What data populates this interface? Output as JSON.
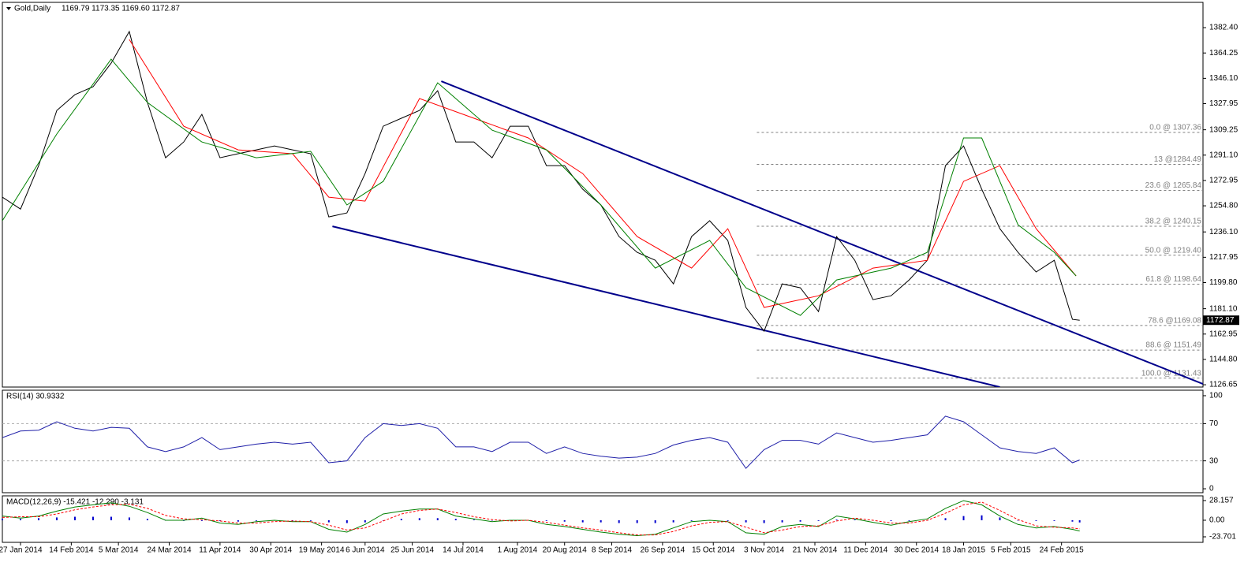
{
  "chart_data": {
    "type": "line",
    "title": "Gold,Daily",
    "subtitle": "1169.79 1173.35 1169.60 1172.87",
    "last": 1172.87,
    "xlim": [
      0,
      331
    ],
    "xticks": [
      {
        "value": 5,
        "label": "27 Jan 2014"
      },
      {
        "value": 19,
        "label": "14 Feb 2014"
      },
      {
        "value": 32,
        "label": "5 Mar 2014"
      },
      {
        "value": 46,
        "label": "24 Mar 2014"
      },
      {
        "value": 60,
        "label": "11 Apr 2014"
      },
      {
        "value": 74,
        "label": "30 Apr 2014"
      },
      {
        "value": 88,
        "label": "19 May 2014"
      },
      {
        "value": 100,
        "label": "6 Jun 2014"
      },
      {
        "value": 113,
        "label": "25 Jun 2014"
      },
      {
        "value": 127,
        "label": "14 Jul 2014"
      },
      {
        "value": 142,
        "label": "1 Aug 2014"
      },
      {
        "value": 155,
        "label": "20 Aug 2014"
      },
      {
        "value": 168,
        "label": "8 Sep 2014"
      },
      {
        "value": 182,
        "label": "26 Sep 2014"
      },
      {
        "value": 196,
        "label": "15 Oct 2014"
      },
      {
        "value": 210,
        "label": "3 Nov 2014"
      },
      {
        "value": 224,
        "label": "21 Nov 2014"
      },
      {
        "value": 238,
        "label": "11 Dec 2014"
      },
      {
        "value": 252,
        "label": "30 Dec 2014"
      },
      {
        "value": 265,
        "label": "18 Jan 2015"
      },
      {
        "value": 278,
        "label": "5 Feb 2015"
      },
      {
        "value": 292,
        "label": "24 Feb 2015"
      }
    ],
    "ylim": [
      1125,
      1400.5
    ],
    "yticks": [
      {
        "value": 1382.4,
        "label": "1382.40"
      },
      1364.25,
      {
        "value": 1346.1,
        "label": "1346.10"
      },
      1327.95,
      1309.25,
      {
        "value": 1291.1,
        "label": "1291.10"
      },
      1272.95,
      {
        "value": 1254.8,
        "label": "1254.80"
      },
      {
        "value": 1236.1,
        "label": "1236.10"
      },
      1217.95,
      {
        "value": 1199.8,
        "label": "1199.80"
      },
      {
        "value": 1181.1,
        "label": "1181.10"
      },
      1162.95,
      {
        "value": 1144.8,
        "label": "1144.80"
      },
      1126.65
    ],
    "series": [
      {
        "color": "#000000",
        "x": [
          0,
          5,
          10,
          15,
          20,
          25,
          30,
          35,
          40,
          45,
          50,
          55,
          60,
          65,
          70,
          75,
          80,
          85,
          90,
          95,
          100,
          105,
          110,
          115,
          120,
          125,
          130,
          135,
          140,
          145,
          150,
          155,
          160,
          165,
          170,
          175,
          180,
          185,
          190,
          195,
          200,
          205,
          210,
          215,
          220,
          225,
          230,
          235,
          240,
          245,
          250,
          255,
          260,
          265,
          270,
          275,
          280,
          285,
          290,
          295,
          297
        ],
        "values": [
          1261.0,
          1252.5,
          1283.6,
          1323.1,
          1334.4,
          1340.1,
          1357.0,
          1379.6,
          1328.8,
          1289.2,
          1300.5,
          1320.3,
          1289.2,
          1292.1,
          1294.9,
          1297.7,
          1294.9,
          1292.1,
          1246.9,
          1249.7,
          1277.9,
          1311.8,
          1317.5,
          1323.1,
          1337.2,
          1300.5,
          1300.5,
          1289.2,
          1311.8,
          1311.8,
          1283.6,
          1283.6,
          1266.7,
          1255.4,
          1232.8,
          1221.5,
          1215.8,
          1198.9,
          1232.8,
          1244.1,
          1230.0,
          1182.0,
          1165.0,
          1198.9,
          1196.1,
          1179.1,
          1232.8,
          1215.8,
          1187.6,
          1190.4,
          1201.7,
          1215.8,
          1283.6,
          1297.7,
          1266.7,
          1238.4,
          1221.5,
          1207.4,
          1215.8,
          1173.5,
          1172.87
        ]
      },
      {
        "color": "#ff0000",
        "x": [
          35,
          50,
          65,
          80,
          90,
          100,
          115,
          130,
          145,
          160,
          175,
          190,
          200,
          210,
          225,
          240,
          255,
          265,
          275,
          285,
          296
        ],
        "values": [
          1373.9,
          1311.8,
          1294.9,
          1292.1,
          1261.0,
          1258.2,
          1331.6,
          1317.5,
          1303.4,
          1277.9,
          1232.8,
          1210.2,
          1238.4,
          1182.0,
          1190.4,
          1210.2,
          1215.8,
          1272.3,
          1283.6,
          1238.4,
          1204.6
        ]
      },
      {
        "color": "#008000",
        "x": [
          0,
          15,
          30,
          40,
          55,
          70,
          85,
          95,
          105,
          120,
          135,
          150,
          165,
          180,
          195,
          205,
          220,
          230,
          245,
          255,
          265,
          270,
          280,
          290,
          296
        ],
        "values": [
          1244.1,
          1306.2,
          1359.8,
          1328.8,
          1300.5,
          1289.2,
          1293.8,
          1255.4,
          1272.3,
          1342.9,
          1309.0,
          1294.9,
          1255.4,
          1210.2,
          1230.0,
          1196.1,
          1176.3,
          1201.7,
          1210.2,
          1221.5,
          1303.4,
          1303.4,
          1241.2,
          1221.5,
          1204.6
        ]
      }
    ],
    "trendlines": [
      {
        "color": "#00008b",
        "x": [
          121,
          331
        ],
        "values": [
          1344.0,
          1127.2
        ]
      },
      {
        "color": "#00008b",
        "x": [
          91,
          275
        ],
        "values": [
          1240.1,
          1125.0
        ]
      }
    ],
    "fib_start": 208,
    "fib_levels": [
      {
        "value": 1307.36,
        "label": "0.0 @ 1307.36"
      },
      {
        "value": 1284.49,
        "label": "13 @1284.49"
      },
      {
        "value": 1265.84,
        "label": "23.6 @ 1265.84"
      },
      {
        "value": 1240.15,
        "label": "38.2 @ 1240.15"
      },
      {
        "value": 1219.4,
        "label": "50.0 @ 1219.40"
      },
      {
        "value": 1198.64,
        "label": "61.8 @ 1198.64"
      },
      {
        "value": 1169.08,
        "label": "78.6 @1169.08"
      },
      {
        "value": 1151.49,
        "label": "88.6 @ 1151.49"
      },
      {
        "value": 1131.43,
        "label": "100.0 @ 1131.43"
      }
    ],
    "rsi": {
      "type": "line",
      "title": "RSI(14) 30.9332",
      "ylim": [
        -4.2,
        105.9
      ],
      "yticks": [
        100,
        70,
        30,
        0
      ],
      "levels": [
        70,
        30
      ],
      "color": "#1f1fa8",
      "x": [
        0,
        5,
        10,
        15,
        20,
        25,
        30,
        35,
        40,
        45,
        50,
        55,
        60,
        65,
        70,
        75,
        80,
        85,
        90,
        95,
        100,
        105,
        110,
        115,
        120,
        125,
        130,
        135,
        140,
        145,
        150,
        155,
        160,
        165,
        170,
        175,
        180,
        185,
        190,
        195,
        200,
        205,
        210,
        215,
        220,
        225,
        230,
        235,
        240,
        245,
        250,
        255,
        260,
        265,
        270,
        275,
        280,
        285,
        290,
        295,
        297
      ],
      "values": [
        55,
        62,
        63,
        72,
        65,
        62,
        66,
        65,
        45,
        40,
        45,
        55,
        42,
        45,
        48,
        50,
        48,
        50,
        28,
        30,
        55,
        70,
        68,
        70,
        65,
        45,
        45,
        40,
        50,
        50,
        38,
        45,
        38,
        35,
        33,
        34,
        38,
        47,
        52,
        55,
        50,
        22,
        42,
        52,
        52,
        48,
        60,
        55,
        50,
        52,
        55,
        58,
        78,
        72,
        58,
        44,
        40,
        38,
        44,
        28,
        30.93
      ]
    },
    "macd": {
      "type": "macd",
      "title": "MACD(12,26,9) -15.421 -12.290 -3.131",
      "ylim": [
        -31.6,
        34.9
      ],
      "yticks": [
        28.157,
        {
          "value": 0,
          "label": "0.00"
        },
        -23.701
      ],
      "x": [
        0,
        5,
        10,
        15,
        20,
        25,
        30,
        35,
        40,
        45,
        50,
        55,
        60,
        65,
        70,
        75,
        80,
        85,
        90,
        95,
        100,
        105,
        110,
        115,
        120,
        125,
        130,
        135,
        140,
        145,
        150,
        155,
        160,
        165,
        170,
        175,
        180,
        185,
        190,
        195,
        200,
        205,
        210,
        215,
        220,
        225,
        230,
        235,
        240,
        245,
        250,
        255,
        260,
        265,
        270,
        275,
        280,
        285,
        290,
        295,
        297
      ],
      "histogram": {
        "color": "#0000cd",
        "values": [
          2,
          2,
          3,
          4,
          5,
          5,
          5,
          4,
          2,
          0,
          -1,
          -1,
          -1,
          -2,
          -1,
          0,
          -1,
          -1,
          -3,
          -4,
          -3,
          0,
          2,
          3,
          3,
          2,
          1,
          0,
          0,
          0,
          -1,
          -2,
          -3,
          -3,
          -4,
          -4,
          -4,
          -3,
          -1,
          0,
          -1,
          -3,
          -4,
          -3,
          -2,
          -1,
          1,
          1,
          0,
          -1,
          -1,
          0,
          3,
          6,
          7,
          4,
          0,
          -1,
          -1,
          -2,
          -3.131
        ]
      },
      "lines": [
        {
          "color": "#008000",
          "style": "solid",
          "values": [
            6,
            3,
            6,
            13,
            19,
            22,
            25,
            20,
            11,
            0,
            0,
            3,
            -4,
            -6,
            -2,
            0,
            -2,
            -2,
            -13,
            -17,
            -6,
            9,
            13,
            16,
            16,
            6,
            2,
            -2,
            0,
            0,
            -6,
            -9,
            -13,
            -17,
            -20,
            -22,
            -20,
            -11,
            -2,
            0,
            -2,
            -18,
            -20,
            -9,
            -6,
            -9,
            6,
            2,
            -3,
            -7,
            -2,
            2,
            17,
            28,
            22,
            6,
            -6,
            -11,
            -9,
            -13,
            -15.421
          ]
        },
        {
          "color": "#ff0000",
          "style": "dashed",
          "values": [
            4,
            5,
            5,
            9,
            15,
            19,
            22,
            23,
            17,
            7,
            2,
            1,
            -1,
            -4,
            -4,
            -2,
            -1,
            -2,
            -7,
            -14,
            -11,
            -1,
            9,
            14,
            16,
            11,
            5,
            1,
            -1,
            0,
            -3,
            -7,
            -11,
            -14,
            -18,
            -21,
            -21,
            -16,
            -8,
            -3,
            -2,
            -10,
            -18,
            -14,
            -9,
            -8,
            -1,
            3,
            0,
            -4,
            -4,
            0,
            10,
            22,
            26,
            14,
            1,
            -8,
            -10,
            -11,
            -12.29
          ]
        }
      ]
    }
  }
}
